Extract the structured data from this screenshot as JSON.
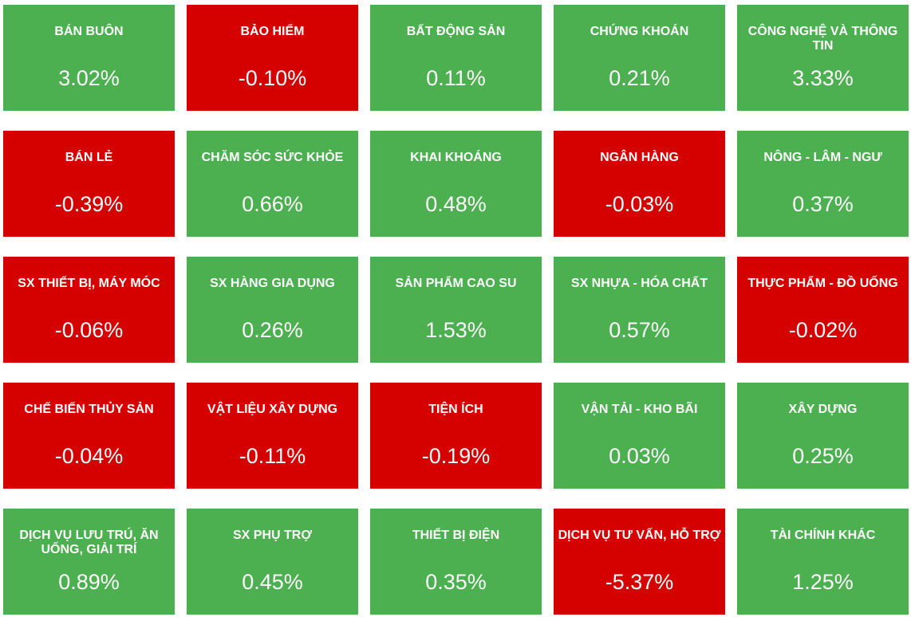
{
  "colors": {
    "up": "#4caf50",
    "down": "#d50000"
  },
  "sectors": [
    {
      "name": "BÁN BUÔN",
      "change": "3.02%",
      "trend": "up"
    },
    {
      "name": "BẢO HIỂM",
      "change": "-0.10%",
      "trend": "down"
    },
    {
      "name": "BẤT ĐỘNG SẢN",
      "change": "0.11%",
      "trend": "up"
    },
    {
      "name": "CHỨNG KHOÁN",
      "change": "0.21%",
      "trend": "up"
    },
    {
      "name": "CÔNG NGHỆ VÀ THÔNG TIN",
      "change": "3.33%",
      "trend": "up"
    },
    {
      "name": "BÁN LẺ",
      "change": "-0.39%",
      "trend": "down"
    },
    {
      "name": "CHĂM SÓC SỨC KHỎE",
      "change": "0.66%",
      "trend": "up"
    },
    {
      "name": "KHAI KHOÁNG",
      "change": "0.48%",
      "trend": "up"
    },
    {
      "name": "NGÂN HÀNG",
      "change": "-0.03%",
      "trend": "down"
    },
    {
      "name": "NÔNG - LÂM - NGƯ",
      "change": "0.37%",
      "trend": "up"
    },
    {
      "name": "SX THIẾT BỊ, MÁY MÓC",
      "change": "-0.06%",
      "trend": "down"
    },
    {
      "name": "SX HÀNG GIA DỤNG",
      "change": "0.26%",
      "trend": "up"
    },
    {
      "name": "SẢN PHẨM CAO SU",
      "change": "1.53%",
      "trend": "up"
    },
    {
      "name": "SX NHỰA - HÓA CHẤT",
      "change": "0.57%",
      "trend": "up"
    },
    {
      "name": "THỰC PHẨM - ĐỒ UỐNG",
      "change": "-0.02%",
      "trend": "down"
    },
    {
      "name": "CHẾ BIẾN THỦY SẢN",
      "change": "-0.04%",
      "trend": "down"
    },
    {
      "name": "VẬT LIỆU XÂY DỰNG",
      "change": "-0.11%",
      "trend": "down"
    },
    {
      "name": "TIỆN ÍCH",
      "change": "-0.19%",
      "trend": "down"
    },
    {
      "name": "VẬN TẢI - KHO BÃI",
      "change": "0.03%",
      "trend": "up"
    },
    {
      "name": "XÂY DỰNG",
      "change": "0.25%",
      "trend": "up"
    },
    {
      "name": "DỊCH VỤ LƯU TRÚ, ĂN UỐNG, GIẢI TRÍ",
      "change": "0.89%",
      "trend": "up"
    },
    {
      "name": "SX PHỤ TRỢ",
      "change": "0.45%",
      "trend": "up"
    },
    {
      "name": "THIẾT BỊ ĐIỆN",
      "change": "0.35%",
      "trend": "up"
    },
    {
      "name": "DỊCH VỤ TƯ VẤN, HỖ TRỢ",
      "change": "-5.37%",
      "trend": "down"
    },
    {
      "name": "TÀI CHÍNH KHÁC",
      "change": "1.25%",
      "trend": "up"
    }
  ]
}
